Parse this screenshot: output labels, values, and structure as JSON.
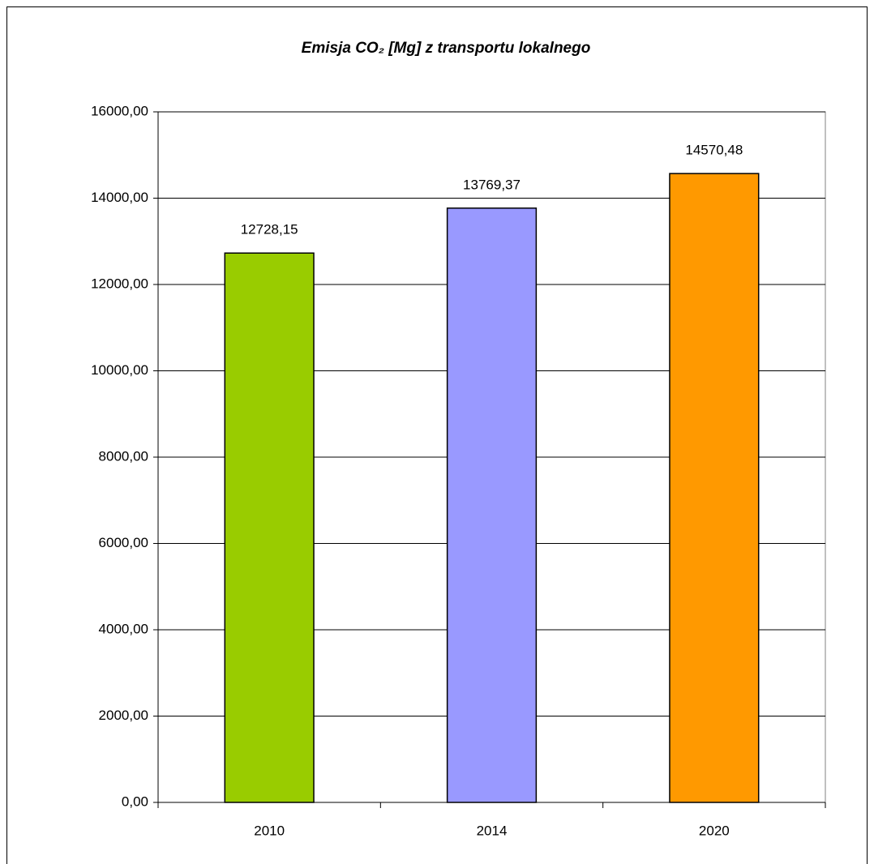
{
  "chart_data": {
    "type": "bar",
    "title": "Emisja CO₂ [Mg] z transportu lokalnego",
    "categories": [
      "2010",
      "2014",
      "2020"
    ],
    "values": [
      12728.15,
      13769.37,
      14570.48
    ],
    "value_labels": [
      "12728,15",
      "13769,37",
      "14570,48"
    ],
    "colors": [
      "#99cc00",
      "#9999ff",
      "#ff9900"
    ],
    "ylim": [
      0,
      16000
    ],
    "yticks": [
      {
        "value": 0,
        "label": "0,00"
      },
      {
        "value": 2000,
        "label": "2000,00"
      },
      {
        "value": 4000,
        "label": "4000,00"
      },
      {
        "value": 6000,
        "label": "6000,00"
      },
      {
        "value": 8000,
        "label": "8000,00"
      },
      {
        "value": 10000,
        "label": "10000,00"
      },
      {
        "value": 12000,
        "label": "12000,00"
      },
      {
        "value": 14000,
        "label": "14000,00"
      },
      {
        "value": 16000,
        "label": "16000,00"
      }
    ],
    "grid": true
  }
}
